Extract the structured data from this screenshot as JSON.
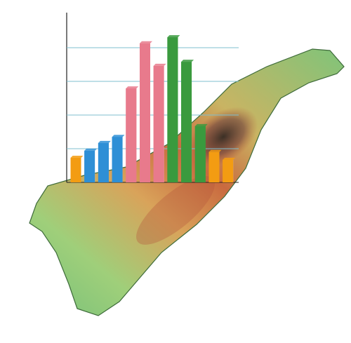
{
  "chart_data": {
    "type": "bar",
    "values": [
      0.73,
      0.94,
      1.17,
      1.35,
      2.79,
      4.13,
      3.46,
      4.31,
      3.58,
      1.67,
      0.9,
      0.67
    ],
    "colors": [
      "#f39c12",
      "#2e8fd6",
      "#2e8fd6",
      "#2e8fd6",
      "#e87a8c",
      "#e87a8c",
      "#e87a8c",
      "#3a9a3e",
      "#3a9a3e",
      "#3a9a3e",
      "#f39c12",
      "#f39c12"
    ],
    "ylim": [
      0,
      5
    ],
    "yticks": [
      1,
      2,
      3,
      4
    ],
    "grid": true
  }
}
